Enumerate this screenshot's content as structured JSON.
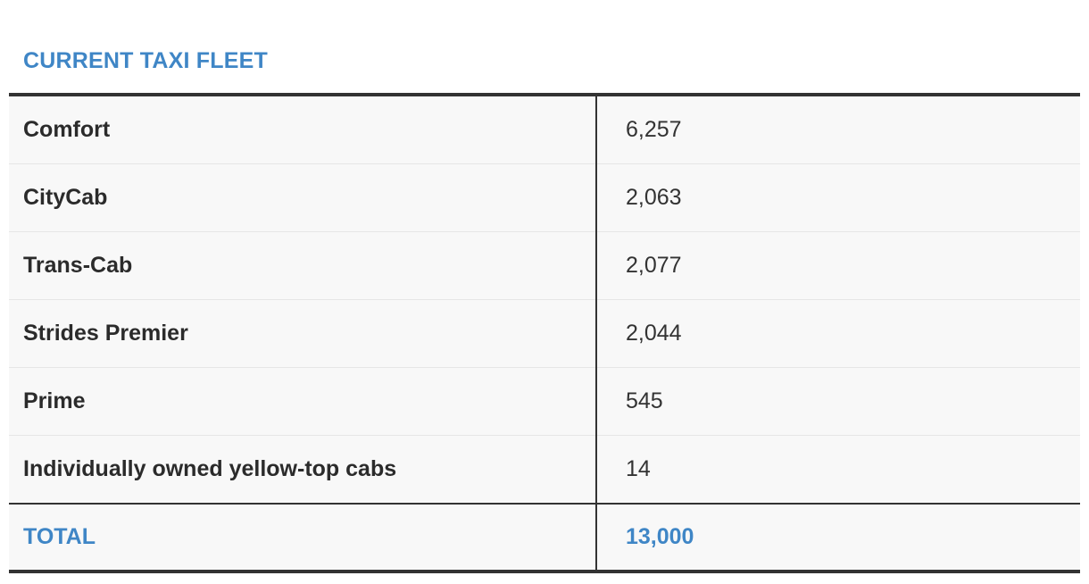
{
  "chart_data": {
    "type": "table",
    "title": "CURRENT TAXI FLEET",
    "rows": [
      {
        "operator": "Comfort",
        "count": "6,257"
      },
      {
        "operator": "CityCab",
        "count": "2,063"
      },
      {
        "operator": "Trans-Cab",
        "count": "2,077"
      },
      {
        "operator": "Strides Premier",
        "count": "2,044"
      },
      {
        "operator": "Prime",
        "count": "545"
      },
      {
        "operator": "Individually owned yellow-top cabs",
        "count": "14"
      }
    ],
    "total": {
      "label": "TOTAL",
      "count": "13,000"
    }
  },
  "colors": {
    "accent": "#3f86c6",
    "text": "#2b2b2b",
    "row_background": "#f8f8f8",
    "rule": "#333333",
    "row_divider": "#e6e6e6"
  }
}
